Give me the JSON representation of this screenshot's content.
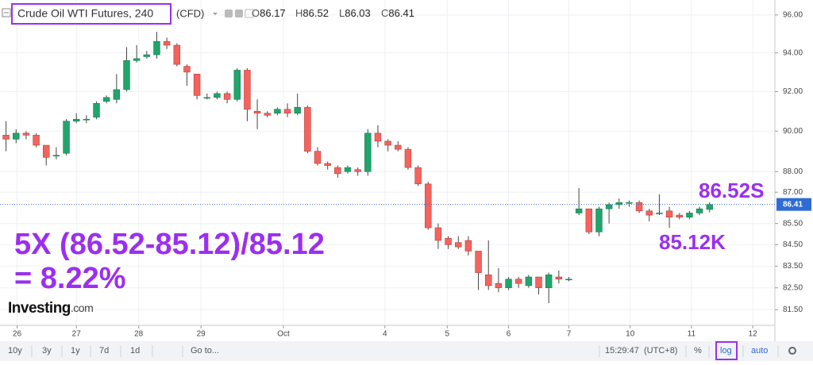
{
  "chart_data": {
    "type": "candlestick",
    "title": "Crude Oil WTI Futures, 240",
    "subtitle": "(CFD)",
    "legend": [
      {
        "label": "O",
        "value": 86.17
      },
      {
        "label": "H",
        "value": 86.52
      },
      {
        "label": "L",
        "value": 86.03
      },
      {
        "label": "C",
        "value": 86.41
      }
    ],
    "open": [
      89.8,
      89.6,
      89.9,
      89.8,
      89.3,
      88.8,
      88.9,
      90.5,
      90.6,
      90.7,
      91.5,
      91.6,
      92.1,
      93.6,
      93.8,
      93.9,
      94.6,
      94.4,
      93.3,
      92.9,
      91.7,
      91.7,
      91.9,
      91.6,
      93.1,
      91.0,
      90.9,
      90.9,
      91.1,
      90.9,
      91.2,
      89.0,
      88.4,
      88.2,
      88.0,
      88.1,
      88.0,
      89.9,
      89.5,
      89.3,
      89.1,
      88.2,
      87.4,
      85.3,
      84.8,
      84.6,
      84.7,
      84.2,
      83.1,
      82.7,
      82.5,
      82.9,
      82.6,
      83.0,
      82.5,
      83.0,
      82.9,
      86.0,
      86.2,
      85.1,
      86.2,
      86.4,
      86.5,
      86.5,
      86.1,
      86.0,
      86.1,
      85.9,
      85.8,
      86.0,
      86.17
    ],
    "high": [
      90.5,
      90.1,
      90.0,
      89.9,
      89.3,
      89.2,
      90.6,
      90.9,
      90.8,
      91.5,
      91.8,
      92.9,
      94.3,
      94.4,
      94.1,
      95.1,
      94.8,
      94.5,
      93.4,
      92.9,
      91.9,
      92.0,
      92.0,
      93.2,
      93.2,
      91.6,
      91.0,
      91.2,
      91.4,
      91.9,
      91.3,
      89.2,
      88.5,
      88.3,
      88.3,
      88.2,
      90.1,
      90.3,
      89.6,
      89.5,
      89.2,
      88.3,
      87.5,
      85.5,
      84.9,
      84.9,
      84.9,
      84.2,
      84.7,
      83.4,
      83.0,
      83.0,
      83.1,
      83.0,
      83.2,
      83.3,
      83.0,
      87.2,
      86.2,
      86.3,
      86.5,
      86.7,
      86.6,
      86.6,
      86.2,
      86.9,
      86.3,
      86.0,
      86.1,
      86.3,
      86.52
    ],
    "low": [
      89.0,
      89.4,
      89.6,
      89.2,
      88.3,
      88.6,
      88.8,
      90.4,
      90.4,
      90.6,
      91.4,
      91.4,
      92.0,
      93.5,
      93.7,
      93.7,
      94.2,
      93.3,
      92.3,
      91.6,
      91.6,
      91.6,
      91.4,
      91.5,
      90.5,
      90.1,
      90.7,
      90.8,
      90.7,
      90.8,
      88.9,
      88.3,
      88.1,
      87.7,
      87.9,
      87.8,
      87.8,
      89.2,
      89.0,
      89.0,
      88.1,
      87.3,
      85.2,
      84.3,
      84.3,
      84.3,
      84.0,
      82.4,
      82.4,
      82.3,
      82.4,
      82.5,
      82.5,
      82.2,
      81.8,
      82.7,
      82.8,
      85.9,
      85.0,
      84.9,
      85.5,
      86.2,
      86.3,
      86.0,
      85.6,
      85.9,
      85.3,
      85.7,
      85.7,
      85.9,
      86.03
    ],
    "close": [
      89.6,
      89.9,
      89.8,
      89.3,
      88.7,
      88.8,
      90.5,
      90.6,
      90.6,
      91.4,
      91.7,
      92.1,
      93.6,
      93.7,
      93.9,
      94.6,
      94.4,
      93.4,
      93.0,
      91.8,
      91.7,
      91.9,
      91.6,
      93.1,
      91.1,
      90.9,
      90.8,
      91.1,
      90.9,
      91.2,
      89.0,
      88.4,
      88.3,
      87.9,
      88.2,
      88.0,
      89.9,
      89.5,
      89.3,
      89.1,
      88.2,
      87.4,
      85.3,
      84.7,
      84.5,
      84.4,
      84.2,
      83.2,
      82.6,
      82.5,
      82.9,
      82.7,
      83.0,
      82.5,
      83.1,
      82.9,
      82.9,
      86.2,
      85.1,
      86.2,
      86.4,
      86.5,
      86.5,
      86.1,
      85.9,
      86.0,
      85.8,
      85.8,
      86.0,
      86.2,
      86.41
    ],
    "up_color": "#21a56b",
    "down_color": "#f4635e",
    "log_scale": true,
    "grid": true,
    "ylim": [
      80.8,
      96.8
    ],
    "yticks": [
      {
        "value": 81.5,
        "label": "81.50"
      },
      {
        "value": 82.5,
        "label": "82.50"
      },
      {
        "value": 83.5,
        "label": "83.50"
      },
      {
        "value": 84.5,
        "label": "84.50"
      },
      {
        "value": 85.5,
        "label": "85.50"
      },
      {
        "value": 87,
        "label": "87.00"
      },
      {
        "value": 88,
        "label": "88.00"
      },
      {
        "value": 90,
        "label": "90.00"
      },
      {
        "value": 92,
        "label": "92.00"
      },
      {
        "value": 94,
        "label": "94.00"
      },
      {
        "value": 96,
        "label": "96.00"
      }
    ],
    "xlim": [
      -0.6,
      76.5
    ],
    "xticks": [
      {
        "value": 1.1,
        "label": "26"
      },
      {
        "value": 7,
        "label": "27"
      },
      {
        "value": 13.2,
        "label": "28"
      },
      {
        "value": 19.4,
        "label": "29"
      },
      {
        "value": 27.6,
        "label": "Oct"
      },
      {
        "value": 37.7,
        "label": "4"
      },
      {
        "value": 43.9,
        "label": "5"
      },
      {
        "value": 50,
        "label": "6"
      },
      {
        "value": 56,
        "label": "7"
      },
      {
        "value": 62.1,
        "label": "10"
      },
      {
        "value": 68.2,
        "label": "11"
      },
      {
        "value": 74.3,
        "label": "12"
      }
    ],
    "last_price": 86.41,
    "annotations": [
      "5X (86.52-85.12)/85.12",
      "= 8.22%",
      "86.52S",
      "85.12K"
    ],
    "annotation_color": "#9b2ff0",
    "logo": "Investing",
    "logo_suffix": ".com"
  },
  "toolbar": {
    "ranges": [
      "10y",
      "3y",
      "1y",
      "7d",
      "1d"
    ],
    "goto": "Go to...",
    "time": "15:29:47",
    "timezone": "(UTC+8)",
    "percent": "%",
    "log": "log",
    "auto": "auto"
  }
}
